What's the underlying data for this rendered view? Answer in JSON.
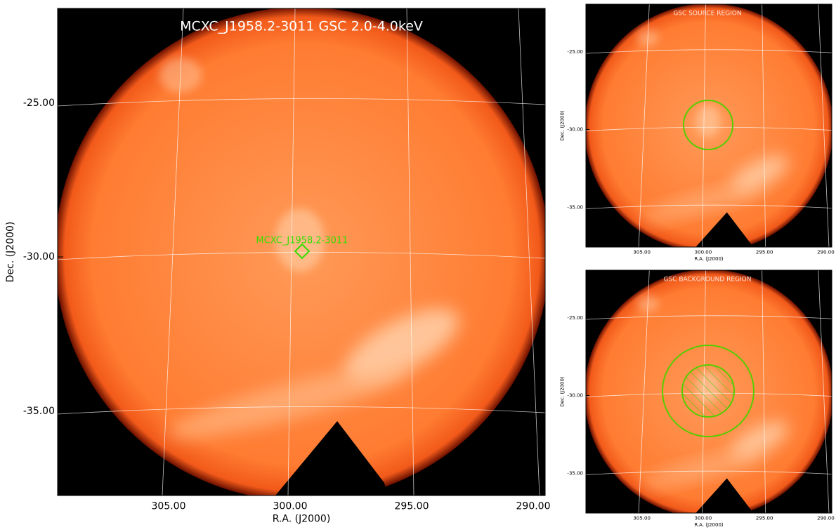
{
  "main": {
    "title": "MCXC_J1958.2-3011 GSC 2.0-4.0keV",
    "source_label": "MCXC_J1958.2-3011",
    "xticks": [
      "305.00",
      "300.00",
      "295.00",
      "290.00"
    ],
    "yticks": [
      "-25.00",
      "-30.00",
      "-35.00"
    ],
    "xlabel": "R.A. (J2000)",
    "ylabel": "Dec. (J2000)"
  },
  "source_panel": {
    "title": "GSC SOURCE REGION",
    "xticks": [
      "305.00",
      "300.00",
      "295.00",
      "290.00"
    ],
    "yticks": [
      "-25.00",
      "-30.00",
      "-35.00"
    ],
    "xlabel": "R.A. (J2000)",
    "ylabel": "Dec. (J2000)"
  },
  "background_panel": {
    "title": "GSC BACKGROUND REGION",
    "xticks": [
      "305.00",
      "300.00",
      "295.00",
      "290.00"
    ],
    "yticks": [
      "-25.00",
      "-30.00",
      "-35.00"
    ],
    "xlabel": "R.A. (J2000)",
    "ylabel": "Dec. (J2000)"
  }
}
